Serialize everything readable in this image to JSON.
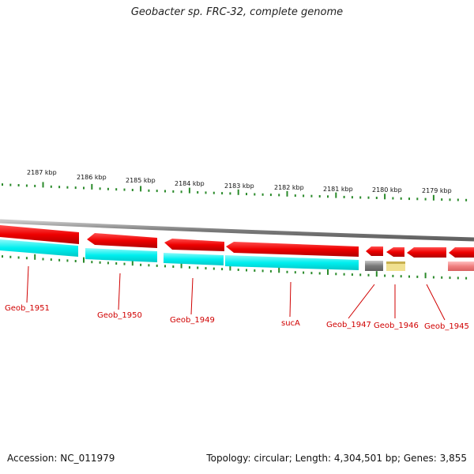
{
  "title": "Geobacter sp. FRC-32, complete genome",
  "footer": {
    "accession": "Accession: NC_011979",
    "topology": "Topology: circular; Length: 4,304,501 bp; Genes: 3,855"
  },
  "scale_labels": [
    "2187 kbp",
    "2186 kbp",
    "2185 kbp",
    "2184 kbp",
    "2183 kbp",
    "2182 kbp",
    "2181 kbp",
    "2180 kbp",
    "2179 kbp"
  ],
  "genes": [
    {
      "label": "Geob_1951"
    },
    {
      "label": "Geob_1950"
    },
    {
      "label": "Geob_1949"
    },
    {
      "label": "sucA"
    },
    {
      "label": "Geob_1947"
    },
    {
      "label": "Geob_1946"
    },
    {
      "label": "Geob_1945"
    }
  ],
  "colors": {
    "cds": "#ee0000",
    "cds_highlight": "#ff6a6a",
    "cyan_track": "#00f0f0",
    "backbone": "#808080",
    "ticks": "#2a8a2a",
    "label": "#d00000",
    "dark_feature": "#666666",
    "yellow_feature": "#f0e090",
    "pink_feature": "#f08080"
  }
}
